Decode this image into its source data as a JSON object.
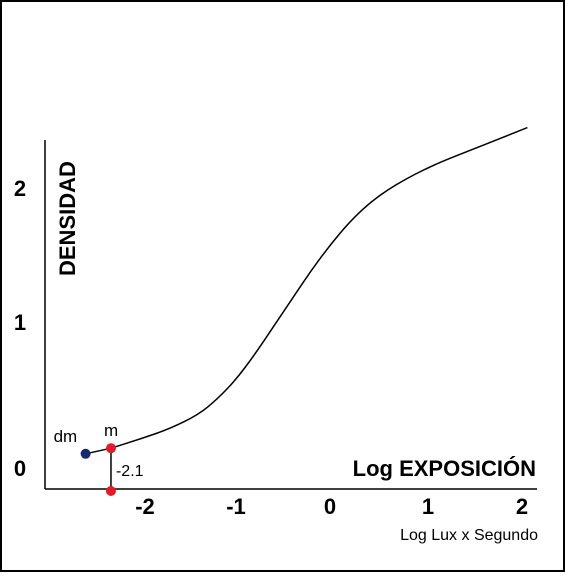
{
  "chart_data": {
    "type": "line",
    "xlabel": "Log EXPOSICIÓN",
    "xlabel_sub": "Log Lux x Segundo",
    "ylabel": "DENSIDAD",
    "x_ticks": [
      "-2",
      "-1",
      "0",
      "1",
      "2"
    ],
    "y_ticks": [
      "0",
      "1",
      "2"
    ],
    "xlim": [
      -2.8,
      2.1
    ],
    "ylim": [
      -0.15,
      2.5
    ],
    "series": [
      {
        "x": [
          -2.33,
          -2.0,
          -1.7,
          -1.4,
          -1.2,
          -1.0,
          -0.8,
          -0.6,
          -0.4,
          -0.2,
          0.0,
          0.2,
          0.4,
          0.6,
          0.8,
          1.0,
          1.2,
          1.5,
          1.8,
          2.1
        ],
        "y": [
          0.17,
          0.24,
          0.31,
          0.41,
          0.52,
          0.66,
          0.84,
          1.04,
          1.24,
          1.44,
          1.62,
          1.78,
          1.91,
          2.01,
          2.09,
          2.16,
          2.22,
          2.3,
          2.38,
          2.46
        ]
      }
    ],
    "points": [
      {
        "label": "dm",
        "x": -2.6,
        "y": 0.13,
        "color": "#152a6b"
      },
      {
        "label": "m",
        "x": -2.33,
        "y": 0.17,
        "color": "#e01c2b"
      },
      {
        "label": "",
        "x": -2.33,
        "y": -0.15,
        "color": "#e01c2b"
      }
    ],
    "annotation": "-2.1"
  }
}
